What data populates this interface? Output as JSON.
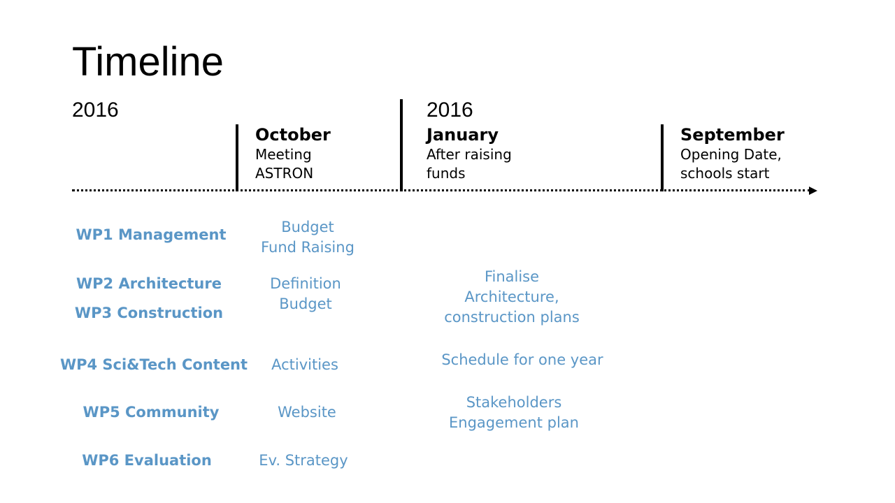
{
  "title": "Timeline",
  "years": {
    "start": "2016",
    "second": "2016"
  },
  "milestones": [
    {
      "month": "October",
      "lines": [
        "Meeting",
        "ASTRON"
      ]
    },
    {
      "month": "January",
      "lines": [
        "After raising",
        "funds"
      ]
    },
    {
      "month": "September",
      "lines": [
        "Opening Date,",
        "schools start"
      ]
    }
  ],
  "work_packages": [
    {
      "label": "WP1 Management"
    },
    {
      "label": "WP2 Architecture"
    },
    {
      "label": "WP3 Construction"
    },
    {
      "label": "WP4 Sci&Tech Content"
    },
    {
      "label": "WP5 Community"
    },
    {
      "label": "WP6 Evaluation"
    }
  ],
  "tasks_october": [
    [
      "Budget",
      "Fund Raising"
    ],
    [
      "Definition",
      "Budget"
    ],
    [
      "Activities"
    ],
    [
      "Website"
    ],
    [
      "Ev. Strategy"
    ]
  ],
  "tasks_january": [
    [
      "Finalise",
      "Architecture,",
      "construction plans"
    ],
    [
      "Schedule for one year"
    ],
    [
      "Stakeholders",
      "Engagement plan"
    ]
  ],
  "colors": {
    "text": "#000000",
    "work_package": "#5a96c6"
  }
}
